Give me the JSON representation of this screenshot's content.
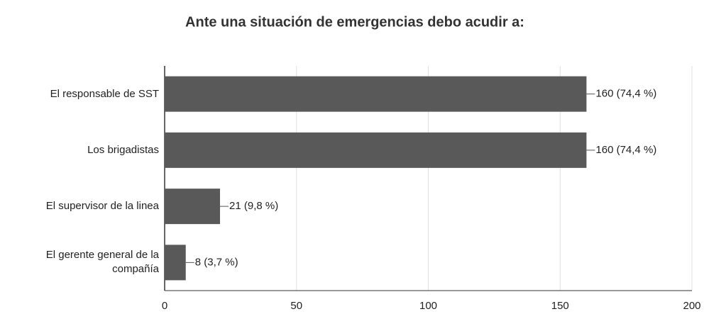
{
  "chart_data": {
    "type": "bar",
    "orientation": "horizontal",
    "title": "Ante una situación  de emergencias debo acudir  a:",
    "categories": [
      "El responsable de SST",
      "Los brigadistas",
      "El supervisor de la linea",
      "El gerente general de la compañía"
    ],
    "values": [
      160,
      160,
      21,
      8
    ],
    "value_labels": [
      "160 (74,4 %)",
      "160 (74,4 %)",
      "21 (9,8 %)",
      "8 (3,7 %)"
    ],
    "color": "#595959",
    "xlim": [
      0,
      200
    ],
    "xticks": [
      0,
      50,
      100,
      150,
      200
    ],
    "grid": true
  }
}
